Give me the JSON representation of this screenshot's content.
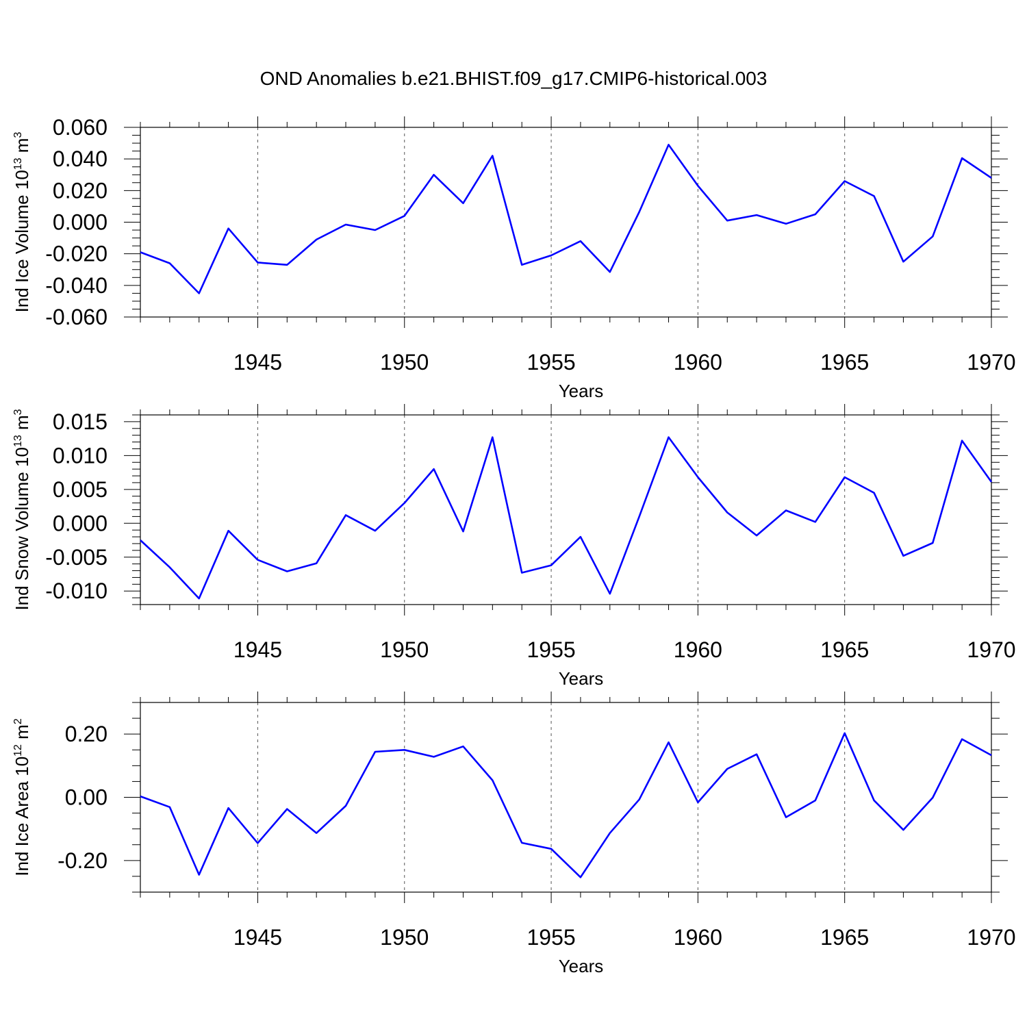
{
  "title": "OND Anomalies b.e21.BHIST.f09_g17.CMIP6-historical.003",
  "colors": {
    "series": "#0000ff",
    "axis": "#000000",
    "grid": "#555555"
  },
  "chart_data": [
    {
      "type": "line",
      "name": "ice-volume",
      "ylabel": {
        "text": "Ind Ice Volume 10",
        "sup1": "13",
        "mid": " m",
        "sup2": "3"
      },
      "xlabel": "Years",
      "xlim": [
        1941,
        1970
      ],
      "ylim": [
        -0.06,
        0.06
      ],
      "yticks": [
        -0.06,
        -0.04,
        -0.02,
        0.0,
        0.02,
        0.04,
        0.06
      ],
      "ytick_labels": [
        "-0.060",
        "-0.040",
        "-0.020",
        "0.000",
        "0.020",
        "0.040",
        "0.060"
      ],
      "yminor_step": 0.005,
      "xticks": [
        1945,
        1950,
        1955,
        1960,
        1965,
        1970
      ],
      "xtick_labels": [
        "1945",
        "1950",
        "1955",
        "1960",
        "1965",
        "1970"
      ],
      "grid": "vertical dashed at major x ticks",
      "x": [
        1941,
        1942,
        1943,
        1944,
        1945,
        1946,
        1947,
        1948,
        1949,
        1950,
        1951,
        1952,
        1953,
        1954,
        1955,
        1956,
        1957,
        1958,
        1959,
        1960,
        1961,
        1962,
        1963,
        1964,
        1965,
        1966,
        1967,
        1968,
        1969,
        1970
      ],
      "values": [
        -0.019,
        -0.026,
        -0.045,
        -0.004,
        -0.0255,
        -0.027,
        -0.011,
        -0.0015,
        -0.005,
        0.004,
        0.03,
        0.012,
        0.042,
        -0.027,
        -0.021,
        -0.012,
        -0.0315,
        0.0065,
        0.049,
        0.023,
        0.001,
        0.0045,
        -0.001,
        0.005,
        0.026,
        0.0165,
        -0.025,
        -0.009,
        0.0405,
        0.028
      ]
    },
    {
      "type": "line",
      "name": "snow-volume",
      "ylabel": {
        "text": "Ind Snow Volume 10",
        "sup1": "13",
        "mid": " m",
        "sup2": "3"
      },
      "xlabel": "Years",
      "xlim": [
        1941,
        1970
      ],
      "ylim": [
        -0.012,
        0.016
      ],
      "yticks": [
        -0.01,
        -0.005,
        0.0,
        0.005,
        0.01,
        0.015
      ],
      "ytick_labels": [
        "-0.010",
        "-0.005",
        "0.000",
        "0.005",
        "0.010",
        "0.015"
      ],
      "yminor_step": 0.001,
      "xticks": [
        1945,
        1950,
        1955,
        1960,
        1965,
        1970
      ],
      "xtick_labels": [
        "1945",
        "1950",
        "1955",
        "1960",
        "1965",
        "1970"
      ],
      "grid": "vertical dashed at major x ticks",
      "x": [
        1941,
        1942,
        1943,
        1944,
        1945,
        1946,
        1947,
        1948,
        1949,
        1950,
        1951,
        1952,
        1953,
        1954,
        1955,
        1956,
        1957,
        1958,
        1959,
        1960,
        1961,
        1962,
        1963,
        1964,
        1965,
        1966,
        1967,
        1968,
        1969,
        1970
      ],
      "values": [
        -0.0025,
        -0.0065,
        -0.0111,
        -0.0011,
        -0.0054,
        -0.0071,
        -0.0059,
        0.0012,
        -0.0011,
        0.003,
        0.008,
        -0.0012,
        0.0127,
        -0.0073,
        -0.0062,
        -0.002,
        -0.0104,
        0.001,
        0.0127,
        0.0068,
        0.0016,
        -0.0018,
        0.0019,
        0.0002,
        0.0068,
        0.0045,
        -0.0048,
        -0.0029,
        0.0122,
        0.0061
      ]
    },
    {
      "type": "line",
      "name": "ice-area",
      "ylabel": {
        "text": "Ind Ice Area 10",
        "sup1": "12",
        "mid": " m",
        "sup2": "2"
      },
      "xlabel": "Years",
      "xlim": [
        1941,
        1970
      ],
      "ylim": [
        -0.3,
        0.3
      ],
      "yticks": [
        -0.2,
        0.0,
        0.2
      ],
      "ytick_labels": [
        "-0.20",
        "0.00",
        "0.20"
      ],
      "yminor_step": 0.05,
      "xticks": [
        1945,
        1950,
        1955,
        1960,
        1965,
        1970
      ],
      "xtick_labels": [
        "1945",
        "1950",
        "1955",
        "1960",
        "1965",
        "1970"
      ],
      "grid": "vertical dashed at major x ticks",
      "x": [
        1941,
        1942,
        1943,
        1944,
        1945,
        1946,
        1947,
        1948,
        1949,
        1950,
        1951,
        1952,
        1953,
        1954,
        1955,
        1956,
        1957,
        1958,
        1959,
        1960,
        1961,
        1962,
        1963,
        1964,
        1965,
        1966,
        1967,
        1968,
        1969,
        1970
      ],
      "values": [
        0.003,
        -0.031,
        -0.245,
        -0.034,
        -0.145,
        -0.037,
        -0.113,
        -0.027,
        0.144,
        0.15,
        0.128,
        0.161,
        0.054,
        -0.144,
        -0.163,
        -0.253,
        -0.113,
        -0.007,
        0.174,
        -0.016,
        0.09,
        0.136,
        -0.063,
        -0.01,
        0.203,
        -0.01,
        -0.103,
        -0.001,
        0.184,
        0.133
      ]
    }
  ]
}
